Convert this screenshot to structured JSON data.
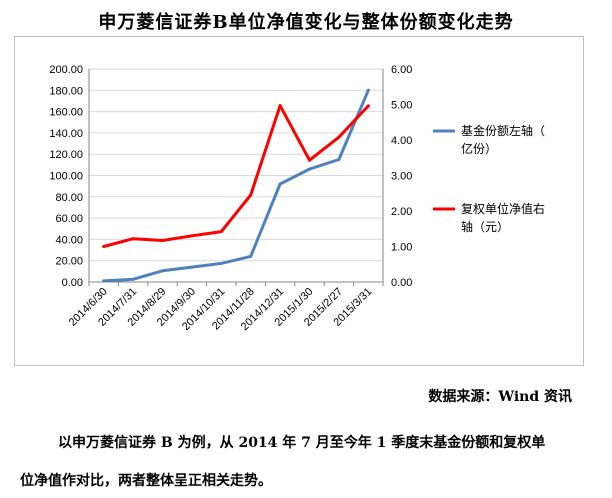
{
  "chart_data": {
    "type": "line",
    "title": "申万菱信证券B单位净值变化与整体份额变化走势",
    "categories": [
      "2014/6/30",
      "2014/7/31",
      "2014/8/29",
      "2014/9/30",
      "2014/10/31",
      "2014/11/28",
      "2014/12/31",
      "2015/1/30",
      "2015/2/27",
      "2015/3/31"
    ],
    "y_left": {
      "ylim": [
        0,
        200
      ],
      "ticks": [
        "0.00",
        "20.00",
        "40.00",
        "60.00",
        "80.00",
        "100.00",
        "120.00",
        "140.00",
        "160.00",
        "180.00",
        "200.00"
      ]
    },
    "y_right": {
      "ylim": [
        0,
        6
      ],
      "ticks": [
        "0.00",
        "1.00",
        "2.00",
        "3.00",
        "4.00",
        "5.00",
        "6.00"
      ]
    },
    "series": [
      {
        "name": "基金份额左轴（亿份）",
        "axis": "left",
        "color": "#4f81bd",
        "values": [
          1.0,
          2.5,
          10.5,
          14.0,
          17.5,
          24.0,
          92.0,
          106.0,
          115.0,
          180.0
        ]
      },
      {
        "name": "复权单位净值右轴（元）",
        "axis": "right",
        "color": "#ff0000",
        "values": [
          1.0,
          1.22,
          1.17,
          1.3,
          1.42,
          2.45,
          4.97,
          3.43,
          4.08,
          4.96
        ]
      }
    ],
    "legend_position": "right",
    "grid": true
  },
  "source_text": "数据来源：Wind 资讯",
  "paragraph": {
    "line1": "以申万菱信证券 B 为例，从 2014 年 7 月至今年 1 季度末基金份额和复权单",
    "line2": "位净值作对比，两者整体呈正相关走势。"
  }
}
